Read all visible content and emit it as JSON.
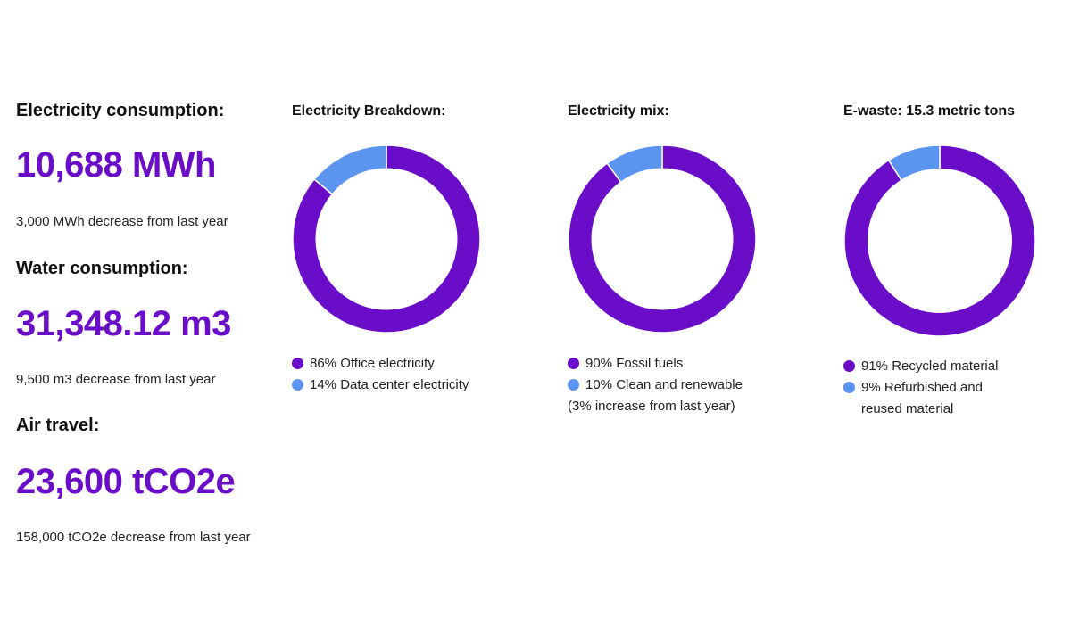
{
  "colors": {
    "accent": "#6a0dc8",
    "primary_segment": "#6a0dc8",
    "secondary_segment": "#5b95f0",
    "text": "#111111"
  },
  "metrics": [
    {
      "label": "Electricity consumption:",
      "value": "10,688 MWh",
      "note": "3,000 MWh decrease from last year"
    },
    {
      "label": "Water consumption:",
      "value": "31,348.12 m3",
      "note": "9,500 m3 decrease from last year"
    },
    {
      "label": "Air travel:",
      "value": "23,600 tCO2e",
      "note": "158,000 tCO2e decrease from last year"
    }
  ],
  "chart_data": [
    {
      "type": "pie",
      "title": "Electricity Breakdown:",
      "categories": [
        "Office electricity",
        "Data center electricity"
      ],
      "values": [
        86,
        14
      ],
      "legend": [
        "86% Office electricity",
        "14% Data center electricity"
      ],
      "note": ""
    },
    {
      "type": "pie",
      "title": "Electricity mix:",
      "categories": [
        "Fossil fuels",
        "Clean and renewable"
      ],
      "values": [
        90,
        10
      ],
      "legend": [
        "90% Fossil fuels",
        "10% Clean and renewable"
      ],
      "note": "(3% increase from last year)"
    },
    {
      "type": "pie",
      "title": "E-waste: 15.3 metric tons",
      "categories": [
        "Recycled material",
        "Refurbished and reused material"
      ],
      "values": [
        91,
        9
      ],
      "legend": [
        "91% Recycled material",
        "9% Refurbished and reused material"
      ],
      "note": ""
    }
  ]
}
